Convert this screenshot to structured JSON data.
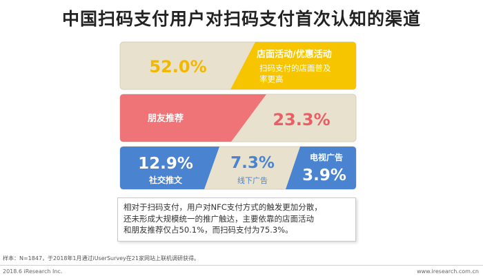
{
  "title": "中国扫码支付用户对扫码支付首次认知的渠道",
  "chart_data": {
    "type": "infographic",
    "items": [
      {
        "name": "店面活动/优惠活动",
        "value": 52.0,
        "label": "52.0%",
        "description": "扫码支付的店面普及率更高"
      },
      {
        "name": "朋友推荐",
        "value": 23.3,
        "label": "23.3%"
      },
      {
        "name": "社交推文",
        "value": 12.9,
        "label": "12.9%"
      },
      {
        "name": "线下广告",
        "value": 7.3,
        "label": "7.3%"
      },
      {
        "name": "电视广告",
        "value": 3.9,
        "label": "3.9%"
      }
    ]
  },
  "desc1": {
    "line1": "扫码支付的店面普",
    "line2": "及",
    "line3": "率更高"
  },
  "note": {
    "line1": "相对于扫码支付，用户对NFC支付方式的触发更加分散，",
    "line2": "还未形成大规模统一的推广触达，主要依靠的店面活动",
    "line3": "和朋友推荐仅占50.1%，而扫码支付为75.3%。"
  },
  "footer": {
    "sample": "样本：N=1847，于2018年1月通过iUserSurvey在21家网站上联机调研获得。",
    "copyright": "2018.6 iResearch Inc.",
    "website": "www.iresearch.com.cn"
  },
  "colors": {
    "yellow": "#f7c400",
    "beige": "#e8e1cd",
    "pink": "#ef7478",
    "blue": "#4a83cf",
    "text_yellow": "#f2b800",
    "text_pink": "#ea5e66",
    "text_blue": "#4a83cf"
  }
}
